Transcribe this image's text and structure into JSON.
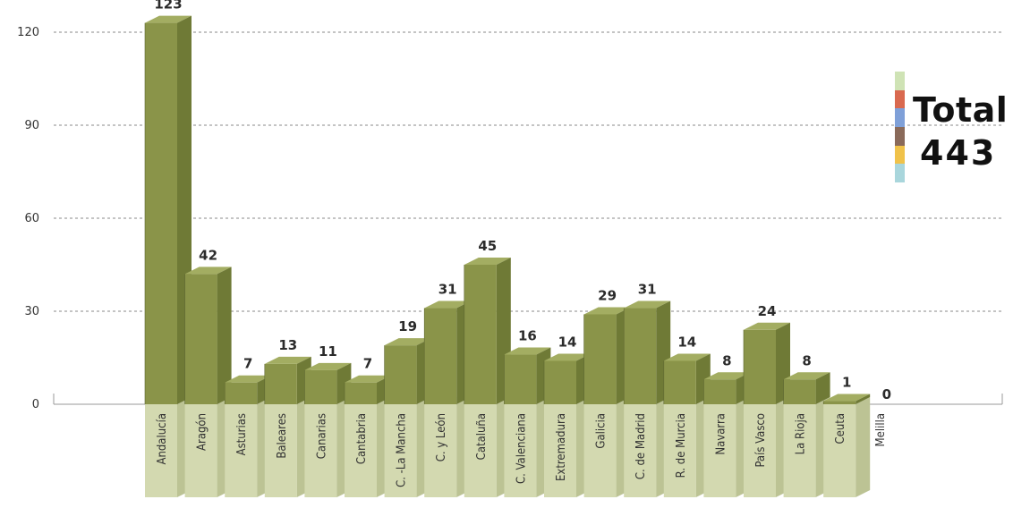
{
  "chart_data": {
    "type": "bar",
    "categories": [
      "Andalucía",
      "Aragón",
      "Asturias",
      "Baleares",
      "Canarias",
      "Cantabria",
      "C. -La Mancha",
      "C. y León",
      "Cataluña",
      "C. Valenciana",
      "Extremadura",
      "Galicia",
      "C. de Madrid",
      "R. de Murcia",
      "Navarra",
      "País Vasco",
      "La Rioja",
      "Ceuta",
      "Melilla"
    ],
    "values": [
      123,
      42,
      7,
      13,
      11,
      7,
      19,
      31,
      45,
      16,
      14,
      29,
      31,
      14,
      8,
      24,
      8,
      1,
      0
    ],
    "ylim": [
      0,
      120
    ],
    "yticks": [
      0,
      30,
      60,
      90,
      120
    ],
    "grid": true,
    "colors": {
      "bar_front": "#8a9449",
      "bar_side": "#6f7a36",
      "bar_top": "#a3ad62",
      "base_front": "#d3d9b0",
      "base_side": "#bcc394"
    }
  },
  "total": {
    "label": "Total",
    "value": "443",
    "strip_colors": [
      "#cfe3b5",
      "#d9694f",
      "#7fa0d8",
      "#8a6a5a",
      "#f0c24a",
      "#a9d6dc"
    ]
  }
}
